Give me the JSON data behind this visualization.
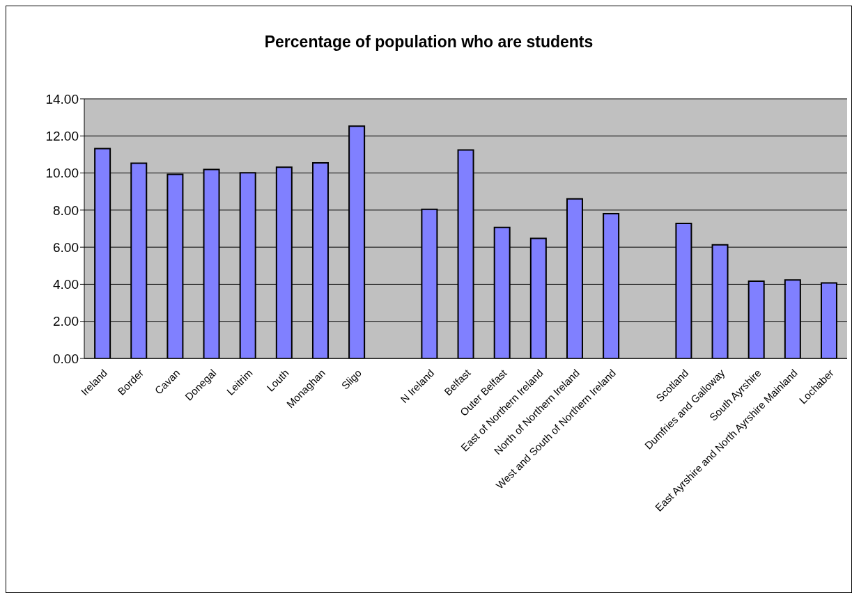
{
  "chart_data": {
    "type": "bar",
    "title": "Percentage of population who are students",
    "categories": [
      "Ireland",
      "Border",
      "Cavan",
      "Donegal",
      "Leitrim",
      "Louth",
      "Monaghan",
      "Sligo",
      null,
      "N Ireland",
      "Belfast",
      "Outer Belfast",
      "East of Northern Ireland",
      "North of Northern Ireland",
      "West and South of Northern Ireland",
      null,
      "Scotland",
      "Dumfries and Galloway",
      "South Ayrshire",
      "East Ayrshire and North Ayrshire Mainland",
      "Lochaber"
    ],
    "values": [
      11.32,
      10.53,
      9.93,
      10.19,
      10.01,
      10.31,
      10.55,
      12.53,
      null,
      8.04,
      11.24,
      7.07,
      6.47,
      8.6,
      7.81,
      null,
      7.28,
      6.13,
      4.17,
      4.23,
      4.07
    ],
    "color": "#8080ff",
    "ylim": [
      0,
      14
    ],
    "yticks": [
      {
        "value": 0,
        "label": "0.00"
      },
      {
        "value": 2,
        "label": "2.00"
      },
      {
        "value": 4,
        "label": "4.00"
      },
      {
        "value": 6,
        "label": "6.00"
      },
      {
        "value": 8,
        "label": "8.00"
      },
      {
        "value": 10,
        "label": "10.00"
      },
      {
        "value": 12,
        "label": "12.00"
      },
      {
        "value": 14,
        "label": "14.00"
      }
    ],
    "grid": "y",
    "legend": false
  }
}
